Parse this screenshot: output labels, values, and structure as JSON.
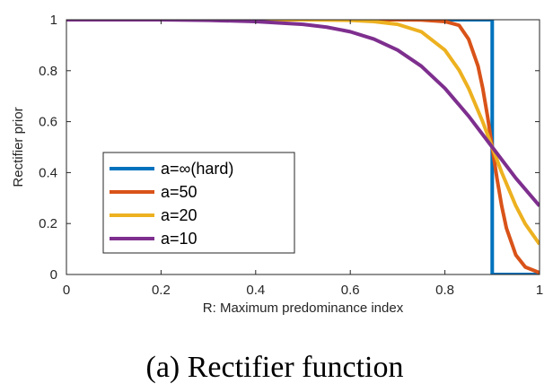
{
  "caption": "(a) Rectifier function",
  "chart_data": {
    "type": "line",
    "xlabel": "R: Maximum predominance index",
    "ylabel": "Rectifier prior",
    "xlim": [
      0,
      1
    ],
    "ylim": [
      0,
      1
    ],
    "xticks": [
      0,
      0.2,
      0.4,
      0.6,
      0.8,
      1
    ],
    "xtick_labels": [
      "0",
      "0.2",
      "0.4",
      "0.6",
      "0.8",
      "1"
    ],
    "yticks": [
      0,
      0.2,
      0.4,
      0.6,
      0.8,
      1
    ],
    "ytick_labels": [
      "0",
      "0.2",
      "0.4",
      "0.6",
      "0.8",
      "1"
    ],
    "grid": false,
    "legend_position": "lower-left",
    "series": [
      {
        "name": "a=∞(hard)",
        "color": "#0072BD",
        "x": [
          0,
          0.9,
          0.9,
          1
        ],
        "y": [
          1,
          1,
          0,
          0
        ]
      },
      {
        "name": "a=50",
        "color": "#D95319",
        "x": [
          0,
          0.5,
          0.6,
          0.7,
          0.75,
          0.8,
          0.83,
          0.85,
          0.87,
          0.88,
          0.89,
          0.9,
          0.91,
          0.92,
          0.93,
          0.95,
          0.97,
          1
        ],
        "y": [
          1,
          1,
          1,
          1,
          0.999,
          0.993,
          0.978,
          0.924,
          0.818,
          0.731,
          0.622,
          0.5,
          0.378,
          0.269,
          0.182,
          0.076,
          0.029,
          0.007
        ]
      },
      {
        "name": "a=20",
        "color": "#EDB120",
        "x": [
          0,
          0.4,
          0.5,
          0.6,
          0.65,
          0.7,
          0.75,
          0.8,
          0.83,
          0.85,
          0.88,
          0.9,
          0.92,
          0.95,
          0.97,
          1
        ],
        "y": [
          1,
          1,
          1,
          0.998,
          0.993,
          0.982,
          0.953,
          0.881,
          0.802,
          0.731,
          0.599,
          0.5,
          0.401,
          0.269,
          0.198,
          0.119
        ]
      },
      {
        "name": "a=10",
        "color": "#7E2F8E",
        "x": [
          0,
          0.2,
          0.3,
          0.4,
          0.5,
          0.55,
          0.6,
          0.65,
          0.7,
          0.75,
          0.8,
          0.85,
          0.9,
          0.95,
          1
        ],
        "y": [
          1,
          1,
          0.998,
          0.993,
          0.982,
          0.971,
          0.953,
          0.924,
          0.881,
          0.818,
          0.731,
          0.622,
          0.5,
          0.378,
          0.269
        ]
      }
    ]
  }
}
